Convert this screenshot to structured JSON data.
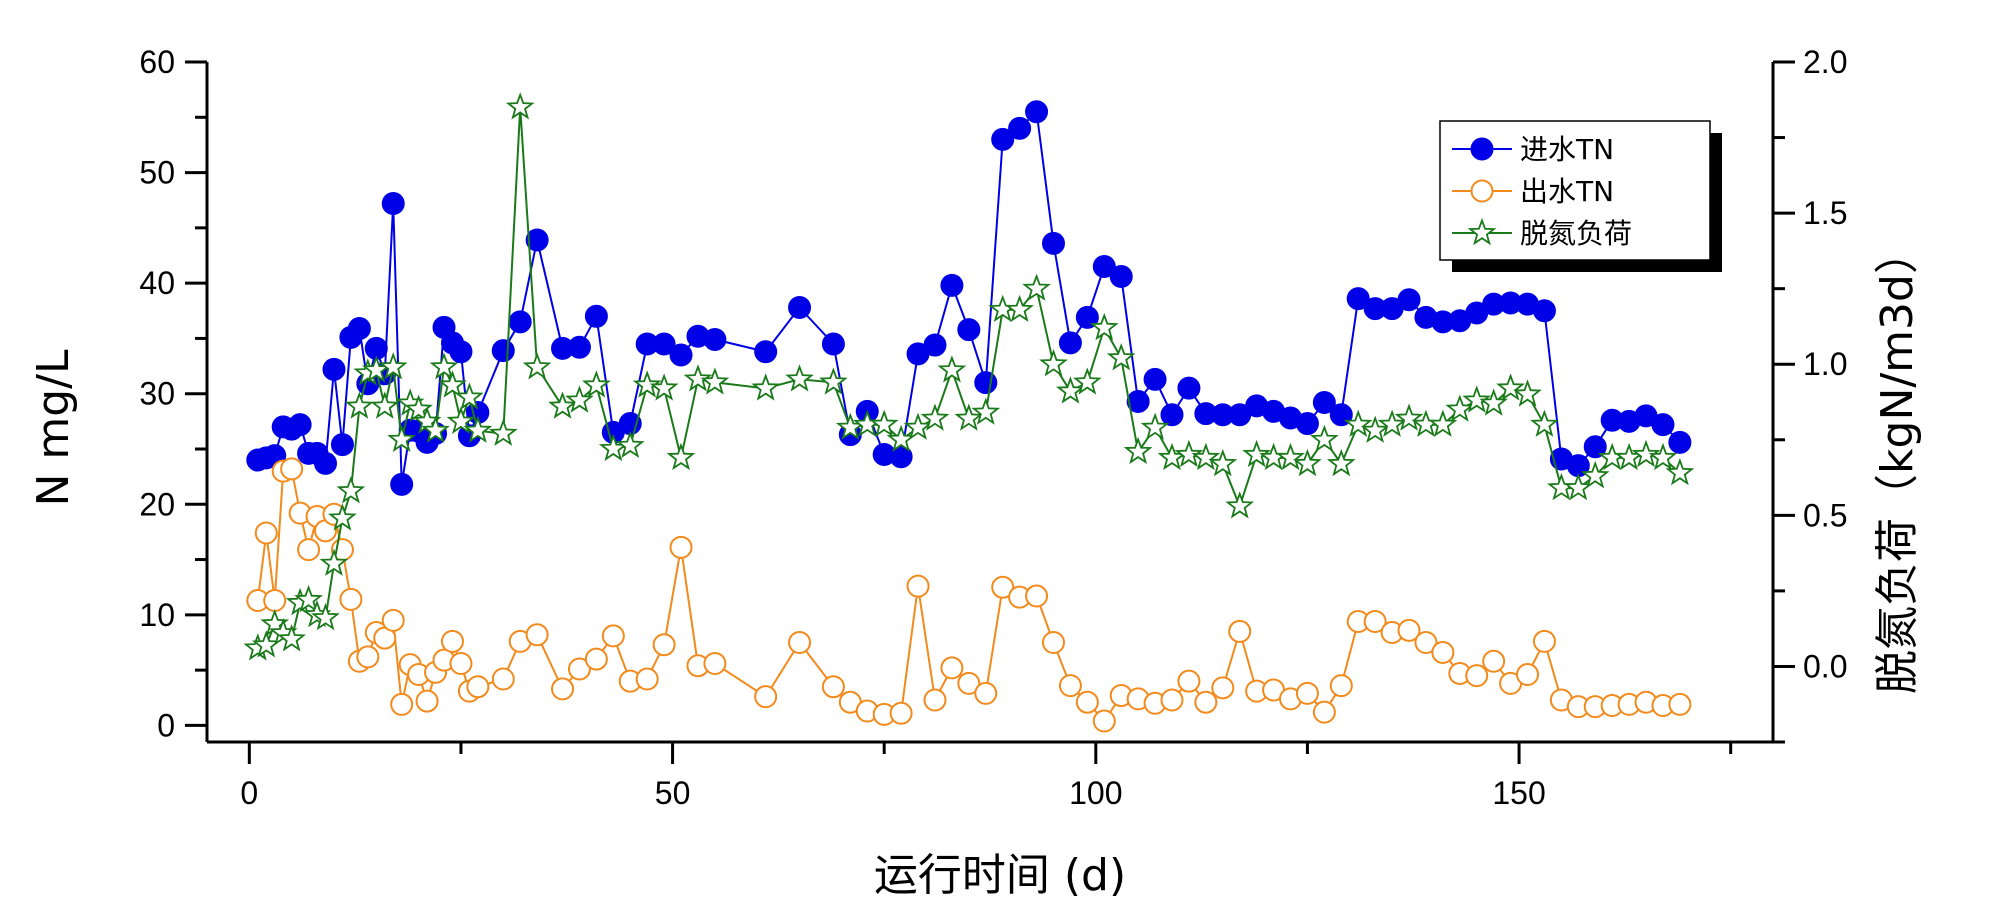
{
  "chart_data": {
    "type": "line",
    "x_axis": {
      "label": "运行时间 (d)",
      "range": [
        -5,
        180
      ],
      "ticks": [
        0,
        50,
        100,
        150
      ]
    },
    "y_axis_left": {
      "label": "N mg/L",
      "range": [
        -1.5,
        60
      ],
      "ticks": [
        0,
        10,
        20,
        30,
        40,
        50,
        60
      ]
    },
    "y_axis_right": {
      "label": "脱氮负荷（kgN/m3d）",
      "range": [
        -0.25,
        2.0
      ],
      "ticks": [
        "0.0",
        "0.5",
        "1.0",
        "1.5",
        "2.0"
      ],
      "tick_values": [
        0,
        0.5,
        1.0,
        1.5,
        2.0
      ]
    },
    "grid": false,
    "legend_position": "top-right",
    "series": [
      {
        "name": "进水TN",
        "axis": "left",
        "color": "#0000e6",
        "marker": "filled-circle",
        "points": [
          [
            1,
            24
          ],
          [
            2,
            24.2
          ],
          [
            3,
            24.4
          ],
          [
            4,
            27
          ],
          [
            5,
            26.8
          ],
          [
            6,
            27.2
          ],
          [
            7,
            24.6
          ],
          [
            8,
            24.6
          ],
          [
            9,
            23.7
          ],
          [
            10,
            32.2
          ],
          [
            11,
            25.4
          ],
          [
            12,
            35.1
          ],
          [
            13,
            35.9
          ],
          [
            14,
            30.9
          ],
          [
            15,
            34.1
          ],
          [
            16,
            31.8
          ],
          [
            17,
            47.2
          ],
          [
            18,
            21.8
          ],
          [
            19,
            26.7
          ],
          [
            20,
            26.6
          ],
          [
            21,
            25.6
          ],
          [
            22,
            26.4
          ],
          [
            23,
            36
          ],
          [
            24,
            34.6
          ],
          [
            25,
            33.8
          ],
          [
            26,
            26.2
          ],
          [
            27,
            28.3
          ],
          [
            30,
            33.9
          ],
          [
            32,
            36.5
          ],
          [
            34,
            43.9
          ],
          [
            37,
            34.1
          ],
          [
            39,
            34.2
          ],
          [
            41,
            37
          ],
          [
            43,
            26.5
          ],
          [
            45,
            27.3
          ],
          [
            47,
            34.5
          ],
          [
            49,
            34.5
          ],
          [
            51,
            33.5
          ],
          [
            53,
            35.2
          ],
          [
            55,
            34.9
          ],
          [
            61,
            33.8
          ],
          [
            65,
            37.8
          ],
          [
            69,
            34.5
          ],
          [
            71,
            26.3
          ],
          [
            73,
            28.4
          ],
          [
            75,
            24.5
          ],
          [
            77,
            24.3
          ],
          [
            79,
            33.6
          ],
          [
            81,
            34.4
          ],
          [
            83,
            39.8
          ],
          [
            85,
            35.8
          ],
          [
            87,
            31
          ],
          [
            89,
            53
          ],
          [
            91,
            54
          ],
          [
            93,
            55.5
          ],
          [
            95,
            43.6
          ],
          [
            97,
            34.6
          ],
          [
            99,
            36.9
          ],
          [
            101,
            41.5
          ],
          [
            103,
            40.6
          ],
          [
            105,
            29.3
          ],
          [
            107,
            31.3
          ],
          [
            109,
            28.1
          ],
          [
            111,
            30.5
          ],
          [
            113,
            28.2
          ],
          [
            115,
            28.1
          ],
          [
            117,
            28.1
          ],
          [
            119,
            28.9
          ],
          [
            121,
            28.4
          ],
          [
            123,
            27.8
          ],
          [
            125,
            27.3
          ],
          [
            127,
            29.2
          ],
          [
            129,
            28.1
          ],
          [
            131,
            38.6
          ],
          [
            133,
            37.7
          ],
          [
            135,
            37.7
          ],
          [
            137,
            38.5
          ],
          [
            139,
            36.9
          ],
          [
            141,
            36.5
          ],
          [
            143,
            36.6
          ],
          [
            145,
            37.3
          ],
          [
            147,
            38.1
          ],
          [
            149,
            38.2
          ],
          [
            151,
            38.1
          ],
          [
            153,
            37.5
          ],
          [
            155,
            24.1
          ],
          [
            157,
            23.5
          ],
          [
            159,
            25.2
          ],
          [
            161,
            27.6
          ],
          [
            163,
            27.5
          ],
          [
            165,
            28
          ],
          [
            167,
            27.2
          ],
          [
            169,
            25.6
          ]
        ]
      },
      {
        "name": "出水TN",
        "axis": "left",
        "color": "#f28a1c",
        "marker": "open-circle",
        "points": [
          [
            1,
            11.3
          ],
          [
            2,
            17.4
          ],
          [
            3,
            11.3
          ],
          [
            4,
            23
          ],
          [
            5,
            23.2
          ],
          [
            6,
            19.2
          ],
          [
            7,
            15.9
          ],
          [
            8,
            18.9
          ],
          [
            9,
            17.6
          ],
          [
            10,
            19.1
          ],
          [
            11,
            15.9
          ],
          [
            12,
            11.4
          ],
          [
            13,
            5.8
          ],
          [
            14,
            6.2
          ],
          [
            15,
            8.4
          ],
          [
            16,
            7.9
          ],
          [
            17,
            9.5
          ],
          [
            18,
            1.9
          ],
          [
            19,
            5.5
          ],
          [
            20,
            4.6
          ],
          [
            21,
            2.2
          ],
          [
            22,
            4.8
          ],
          [
            23,
            5.9
          ],
          [
            24,
            7.6
          ],
          [
            25,
            5.6
          ],
          [
            26,
            3.1
          ],
          [
            27,
            3.5
          ],
          [
            30,
            4.2
          ],
          [
            32,
            7.6
          ],
          [
            34,
            8.2
          ],
          [
            37,
            3.3
          ],
          [
            39,
            5.1
          ],
          [
            41,
            6
          ],
          [
            43,
            8.1
          ],
          [
            45,
            4
          ],
          [
            47,
            4.2
          ],
          [
            49,
            7.3
          ],
          [
            51,
            16.1
          ],
          [
            53,
            5.4
          ],
          [
            55,
            5.6
          ],
          [
            61,
            2.6
          ],
          [
            65,
            7.5
          ],
          [
            69,
            3.5
          ],
          [
            71,
            2.1
          ],
          [
            73,
            1.3
          ],
          [
            75,
            1
          ],
          [
            77,
            1.1
          ],
          [
            79,
            12.6
          ],
          [
            81,
            2.3
          ],
          [
            83,
            5.2
          ],
          [
            85,
            3.8
          ],
          [
            87,
            2.9
          ],
          [
            89,
            12.5
          ],
          [
            91,
            11.6
          ],
          [
            93,
            11.7
          ],
          [
            95,
            7.5
          ],
          [
            97,
            3.6
          ],
          [
            99,
            2.1
          ],
          [
            101,
            0.4
          ],
          [
            103,
            2.7
          ],
          [
            105,
            2.4
          ],
          [
            107,
            2
          ],
          [
            109,
            2.3
          ],
          [
            111,
            4
          ],
          [
            113,
            2.1
          ],
          [
            115,
            3.4
          ],
          [
            117,
            8.5
          ],
          [
            119,
            3.1
          ],
          [
            121,
            3.2
          ],
          [
            123,
            2.4
          ],
          [
            125,
            2.9
          ],
          [
            127,
            1.2
          ],
          [
            129,
            3.6
          ],
          [
            131,
            9.4
          ],
          [
            133,
            9.4
          ],
          [
            135,
            8.4
          ],
          [
            137,
            8.6
          ],
          [
            139,
            7.5
          ],
          [
            141,
            6.6
          ],
          [
            143,
            4.7
          ],
          [
            145,
            4.5
          ],
          [
            147,
            5.8
          ],
          [
            149,
            3.8
          ],
          [
            151,
            4.6
          ],
          [
            153,
            7.6
          ],
          [
            155,
            2.3
          ],
          [
            157,
            1.7
          ],
          [
            159,
            1.7
          ],
          [
            161,
            1.8
          ],
          [
            163,
            1.9
          ],
          [
            165,
            2.1
          ],
          [
            167,
            1.8
          ],
          [
            169,
            1.9
          ]
        ]
      },
      {
        "name": "脱氮负荷",
        "axis": "right",
        "color": "#1a7a1a",
        "marker": "open-star",
        "points": [
          [
            1,
            0.06
          ],
          [
            2,
            0.07
          ],
          [
            3,
            0.14
          ],
          [
            4,
            0.11
          ],
          [
            5,
            0.09
          ],
          [
            6,
            0.21
          ],
          [
            7,
            0.22
          ],
          [
            8,
            0.17
          ],
          [
            9,
            0.16
          ],
          [
            10,
            0.34
          ],
          [
            11,
            0.49
          ],
          [
            12,
            0.58
          ],
          [
            13,
            0.86
          ],
          [
            14,
            0.97
          ],
          [
            15,
            0.98
          ],
          [
            16,
            0.86
          ],
          [
            17,
            0.99
          ],
          [
            18,
            0.75
          ],
          [
            19,
            0.87
          ],
          [
            20,
            0.85
          ],
          [
            21,
            0.81
          ],
          [
            22,
            0.78
          ],
          [
            23,
            0.99
          ],
          [
            24,
            0.93
          ],
          [
            25,
            0.81
          ],
          [
            26,
            0.89
          ],
          [
            27,
            0.78
          ],
          [
            30,
            0.77
          ],
          [
            32,
            1.85
          ],
          [
            34,
            0.99
          ],
          [
            37,
            0.86
          ],
          [
            39,
            0.88
          ],
          [
            41,
            0.93
          ],
          [
            43,
            0.72
          ],
          [
            45,
            0.73
          ],
          [
            47,
            0.93
          ],
          [
            49,
            0.92
          ],
          [
            51,
            0.69
          ],
          [
            53,
            0.95
          ],
          [
            55,
            0.94
          ],
          [
            61,
            0.92
          ],
          [
            65,
            0.95
          ],
          [
            69,
            0.94
          ],
          [
            71,
            0.79
          ],
          [
            73,
            0.8
          ],
          [
            75,
            0.8
          ],
          [
            77,
            0.75
          ],
          [
            79,
            0.79
          ],
          [
            81,
            0.82
          ],
          [
            83,
            0.98
          ],
          [
            85,
            0.82
          ],
          [
            87,
            0.84
          ],
          [
            89,
            1.18
          ],
          [
            91,
            1.18
          ],
          [
            93,
            1.25
          ],
          [
            95,
            1.0
          ],
          [
            97,
            0.91
          ],
          [
            99,
            0.94
          ],
          [
            101,
            1.12
          ],
          [
            103,
            1.02
          ],
          [
            105,
            0.71
          ],
          [
            107,
            0.79
          ],
          [
            109,
            0.69
          ],
          [
            111,
            0.7
          ],
          [
            113,
            0.69
          ],
          [
            115,
            0.67
          ],
          [
            117,
            0.53
          ],
          [
            119,
            0.7
          ],
          [
            121,
            0.69
          ],
          [
            123,
            0.69
          ],
          [
            125,
            0.67
          ],
          [
            127,
            0.75
          ],
          [
            129,
            0.67
          ],
          [
            131,
            0.8
          ],
          [
            133,
            0.78
          ],
          [
            135,
            0.8
          ],
          [
            137,
            0.82
          ],
          [
            139,
            0.8
          ],
          [
            141,
            0.8
          ],
          [
            143,
            0.85
          ],
          [
            145,
            0.88
          ],
          [
            147,
            0.87
          ],
          [
            149,
            0.92
          ],
          [
            151,
            0.9
          ],
          [
            153,
            0.8
          ],
          [
            155,
            0.59
          ],
          [
            157,
            0.59
          ],
          [
            159,
            0.63
          ],
          [
            161,
            0.69
          ],
          [
            163,
            0.69
          ],
          [
            165,
            0.7
          ],
          [
            167,
            0.69
          ],
          [
            169,
            0.64
          ]
        ]
      }
    ]
  }
}
